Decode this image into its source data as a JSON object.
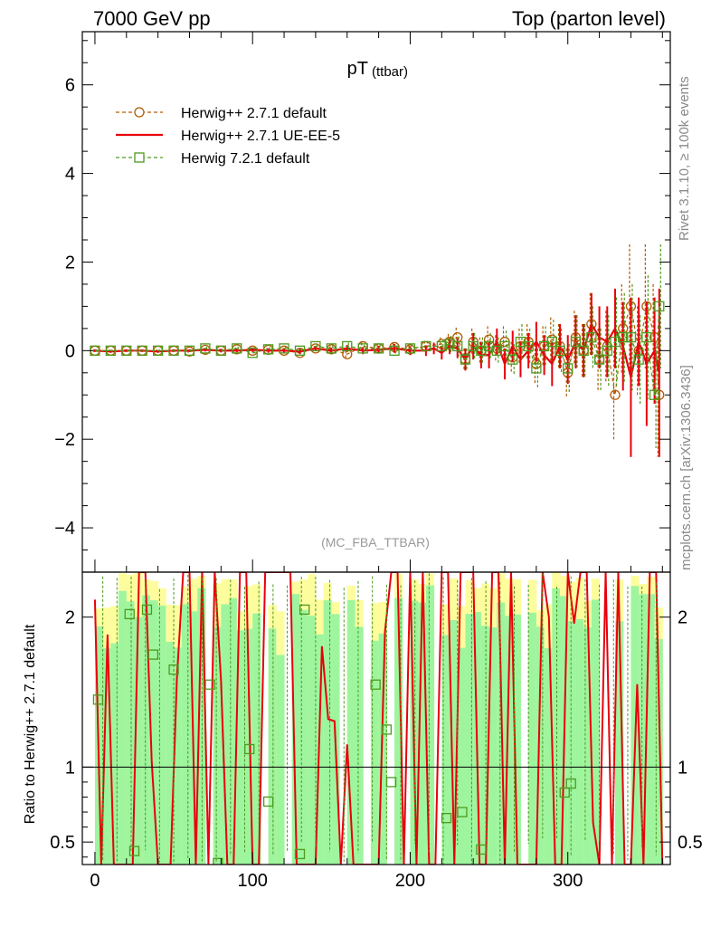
{
  "header": {
    "left": "7000 GeV pp",
    "right": "Top (parton level)"
  },
  "side": {
    "rivet": "Rivet 3.1.10, ≥ 100k events",
    "source": "mcplots.cern.ch [arXiv:1306.3436]"
  },
  "chart_data": [
    {
      "type": "line",
      "panel": "main",
      "title": "pT",
      "title_sub": "(ttbar)",
      "watermark": "(MC_FBA_TTBAR)",
      "xlim": [
        -8,
        365
      ],
      "ylim": [
        -5,
        7.2
      ],
      "yticks": [
        -4,
        -2,
        0,
        2,
        4,
        6
      ],
      "ytick_labels": [
        "−4",
        "−2",
        "0",
        "2",
        "4",
        "6"
      ],
      "legend_position": "top-left",
      "series": [
        {
          "name": "Herwig++ 2.7.1 default",
          "color": "#b35a00",
          "style": "dashed",
          "marker": "circle",
          "x": [
            0,
            10,
            20,
            30,
            40,
            50,
            60,
            70,
            80,
            90,
            100,
            110,
            120,
            130,
            140,
            150,
            160,
            170,
            180,
            190,
            200,
            210,
            220,
            225,
            230,
            235,
            240,
            245,
            250,
            255,
            260,
            265,
            270,
            275,
            280,
            285,
            290,
            295,
            300,
            305,
            310,
            315,
            320,
            325,
            330,
            335,
            340,
            345,
            350,
            355,
            358
          ],
          "y": [
            0,
            0,
            0,
            0,
            0,
            0,
            -0.02,
            0.02,
            0,
            0.03,
            0,
            0.02,
            0,
            -0.05,
            0.05,
            0.03,
            -0.08,
            0.1,
            0.05,
            0.08,
            0.03,
            0.1,
            0.15,
            0.2,
            0.3,
            -0.2,
            0.2,
            0,
            0.25,
            0.05,
            0.2,
            -0.15,
            0.1,
            0.2,
            -0.3,
            0.1,
            0.25,
            0.1,
            -0.5,
            0.3,
            0,
            0.6,
            -0.2,
            0.1,
            -1.0,
            0.5,
            1.0,
            0,
            1.0,
            0.3,
            -1.0
          ],
          "err": [
            0.03,
            0.03,
            0.03,
            0.03,
            0.03,
            0.03,
            0.03,
            0.04,
            0.04,
            0.04,
            0.05,
            0.05,
            0.05,
            0.06,
            0.06,
            0.07,
            0.08,
            0.08,
            0.09,
            0.1,
            0.1,
            0.12,
            0.15,
            0.18,
            0.22,
            0.25,
            0.3,
            0.3,
            0.3,
            0.3,
            0.35,
            0.35,
            0.4,
            0.4,
            0.45,
            0.45,
            0.5,
            0.5,
            0.55,
            0.6,
            0.6,
            0.7,
            0.7,
            0.8,
            1.0,
            1.0,
            1.4,
            1.0,
            1.4,
            1.2,
            1.4
          ]
        },
        {
          "name": "Herwig++ 2.7.1 UE-EE-5",
          "color": "#e8000b",
          "style": "solid",
          "marker": "none",
          "x": [
            0,
            10,
            20,
            30,
            40,
            50,
            60,
            70,
            80,
            90,
            100,
            110,
            120,
            130,
            140,
            150,
            160,
            170,
            180,
            190,
            200,
            210,
            215,
            220,
            225,
            230,
            235,
            240,
            245,
            250,
            255,
            260,
            265,
            270,
            275,
            280,
            285,
            290,
            295,
            300,
            305,
            310,
            315,
            320,
            325,
            330,
            335,
            340,
            345,
            350,
            355,
            358
          ],
          "y": [
            0,
            -0.02,
            0,
            0,
            -0.02,
            0,
            0,
            0.02,
            0,
            0,
            0.02,
            0,
            0,
            -0.02,
            0.05,
            0,
            0.05,
            0,
            0.02,
            0.05,
            0,
            0,
            0.05,
            -0.05,
            0.1,
            0.05,
            -0.2,
            0.1,
            -0.1,
            -0.1,
            0.2,
            -0.3,
            0.1,
            -0.2,
            0,
            0.2,
            -0.1,
            -0.3,
            0.1,
            -0.2,
            0.2,
            0,
            0.6,
            0.3,
            0.2,
            0.5,
            0.1,
            -0.6,
            0.2,
            -0.3,
            0,
            -0.5
          ],
          "err": [
            0.03,
            0.03,
            0.03,
            0.03,
            0.03,
            0.03,
            0.03,
            0.04,
            0.04,
            0.04,
            0.05,
            0.05,
            0.05,
            0.06,
            0.06,
            0.07,
            0.08,
            0.08,
            0.09,
            0.1,
            0.1,
            0.12,
            0.13,
            0.15,
            0.18,
            0.22,
            0.25,
            0.3,
            0.3,
            0.3,
            0.3,
            0.35,
            0.35,
            0.4,
            0.4,
            0.45,
            0.45,
            0.5,
            0.5,
            0.55,
            0.6,
            0.6,
            0.7,
            0.7,
            0.8,
            0.9,
            1.0,
            1.8,
            1.0,
            1.4,
            1.2,
            1.9
          ]
        },
        {
          "name": "Herwig 7.2.1 default",
          "color": "#4d9a1e",
          "style": "dashed",
          "marker": "square",
          "x": [
            0,
            10,
            20,
            30,
            40,
            50,
            60,
            70,
            80,
            90,
            100,
            110,
            120,
            130,
            140,
            150,
            160,
            170,
            180,
            190,
            200,
            210,
            220,
            225,
            230,
            235,
            240,
            245,
            250,
            255,
            260,
            265,
            270,
            275,
            280,
            285,
            290,
            295,
            300,
            305,
            310,
            315,
            320,
            325,
            330,
            335,
            340,
            345,
            350,
            355,
            358
          ],
          "y": [
            0,
            0,
            0,
            0,
            0,
            0,
            0,
            0.05,
            0,
            0.05,
            -0.05,
            0.03,
            0.05,
            0,
            0.1,
            0.05,
            0.1,
            0.05,
            0.05,
            0,
            0.05,
            0.1,
            0.1,
            0.15,
            0.1,
            -0.2,
            0.1,
            0,
            0.1,
            0,
            0.1,
            -0.2,
            0.2,
            0.1,
            -0.4,
            0.1,
            0.2,
            0,
            -0.4,
            0.2,
            0,
            0.3,
            -0.2,
            0,
            0.2,
            0.3,
            0.3,
            -0.2,
            0.3,
            -1.0,
            1.0
          ],
          "err": [
            0.03,
            0.03,
            0.03,
            0.03,
            0.03,
            0.03,
            0.03,
            0.04,
            0.04,
            0.04,
            0.05,
            0.05,
            0.05,
            0.06,
            0.06,
            0.07,
            0.08,
            0.08,
            0.09,
            0.1,
            0.1,
            0.12,
            0.15,
            0.18,
            0.22,
            0.25,
            0.3,
            0.3,
            0.3,
            0.3,
            0.35,
            0.35,
            0.4,
            0.4,
            0.45,
            0.45,
            0.5,
            0.5,
            0.55,
            0.6,
            0.6,
            0.7,
            0.7,
            0.8,
            1.0,
            1.0,
            1.2,
            1.0,
            1.4,
            1.2,
            1.4
          ]
        }
      ]
    },
    {
      "type": "line",
      "panel": "ratio",
      "ylabel": "Ratio to Herwig++ 2.7.1 default",
      "xlim": [
        -8,
        365
      ],
      "ylim": [
        0.35,
        2.3
      ],
      "xticks": [
        0,
        100,
        200,
        300
      ],
      "yticks": [
        0.5,
        1,
        2
      ],
      "ytick_labels": [
        "0.5",
        "1",
        "2"
      ],
      "reference_line": 1,
      "band_colors": {
        "inner": "#9ef59e",
        "outer": "#fdfd9e"
      },
      "series": [
        {
          "name": "Herwig 7.2.1 default",
          "color": "#4d9a1e",
          "x": [
            2,
            22,
            25,
            33,
            37,
            50,
            73,
            78,
            98,
            110,
            130,
            133,
            178,
            185,
            188,
            223,
            233,
            245,
            298,
            302
          ],
          "y": [
            1.45,
            2.02,
            0.44,
            2.05,
            1.75,
            1.65,
            1.55,
            0.36,
            1.12,
            0.77,
            0.42,
            2.05,
            1.55,
            1.25,
            0.9,
            0.66,
            0.7,
            0.45,
            0.83,
            0.89
          ]
        }
      ]
    }
  ]
}
